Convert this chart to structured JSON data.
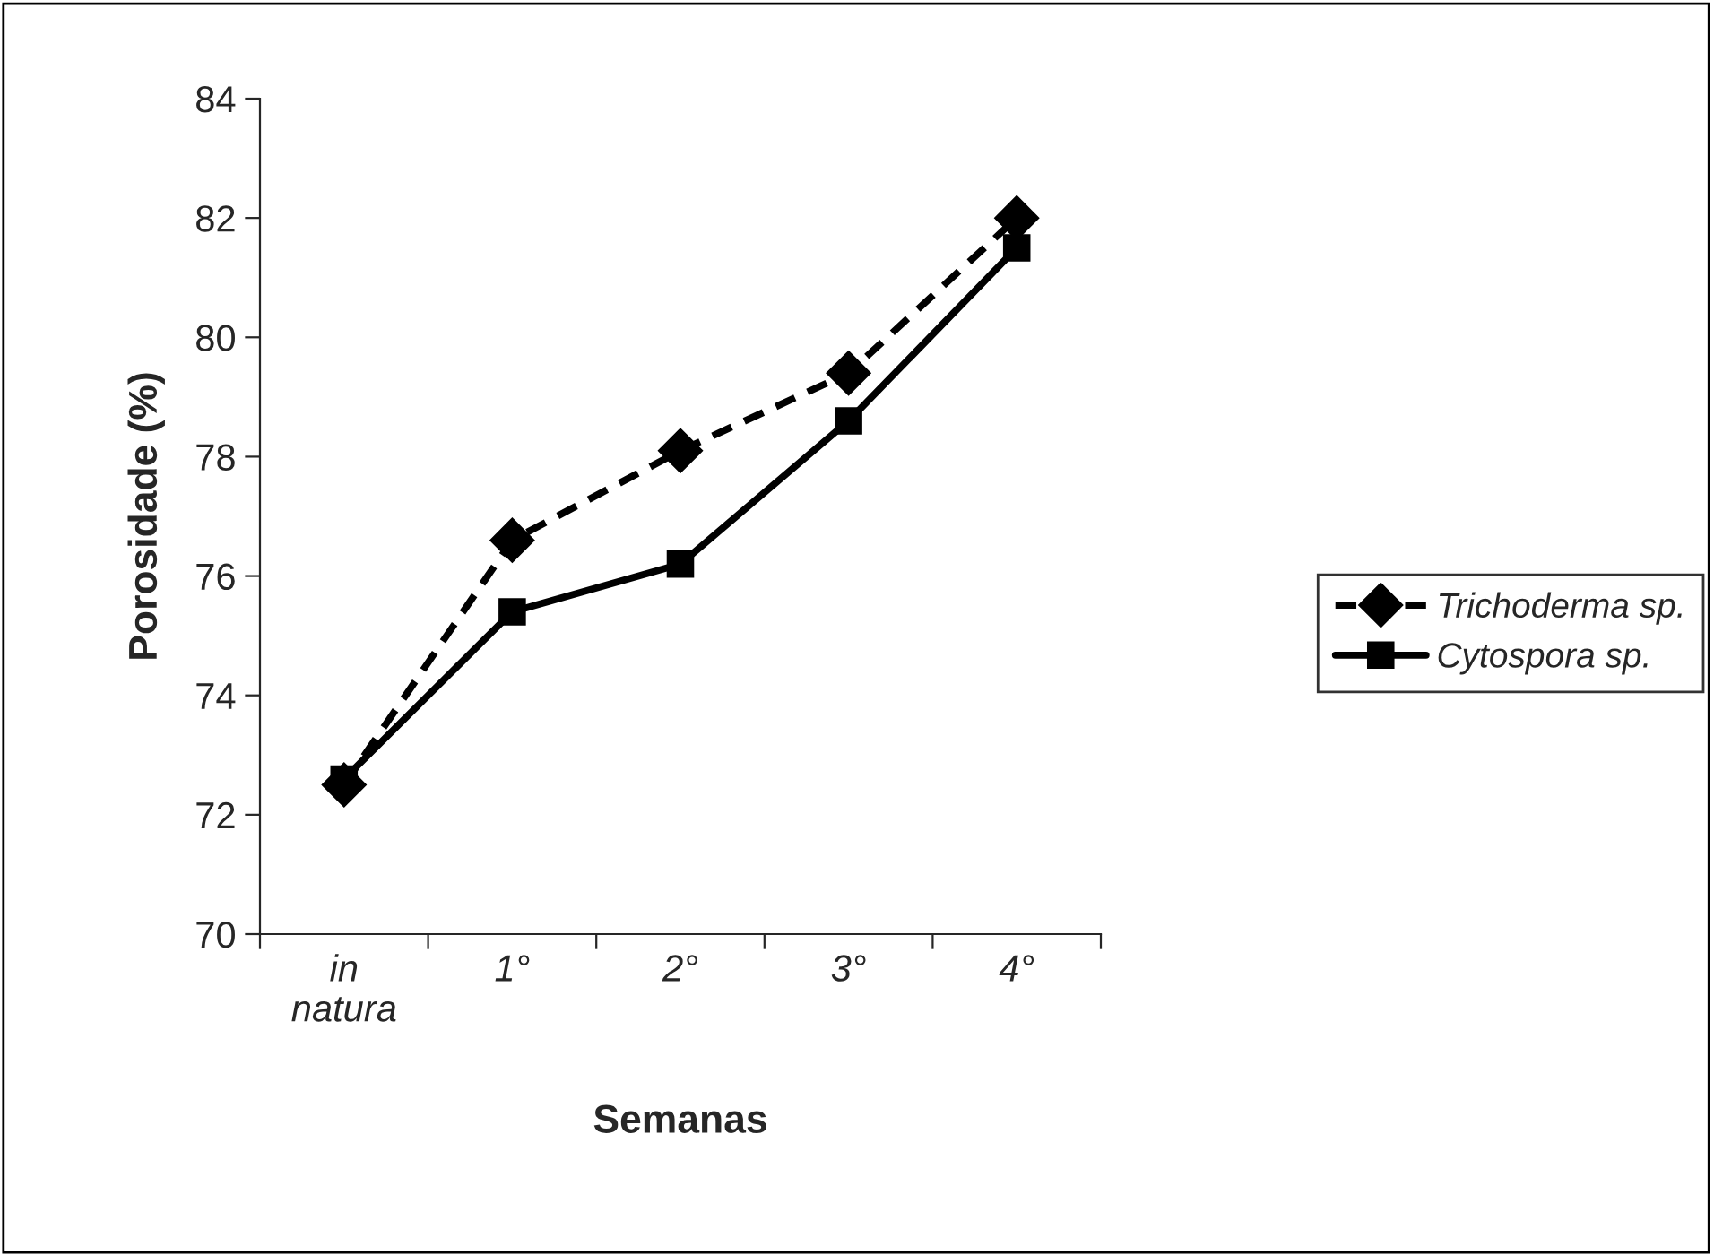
{
  "chart_data": {
    "type": "line",
    "xlabel": "Semanas",
    "ylabel": "Porosidade (%)",
    "categories": [
      "in\nnatura",
      "1°",
      "2°",
      "3°",
      "4°"
    ],
    "series": [
      {
        "name": "Trichoderma sp.",
        "color": "#000000",
        "values": [
          72.5,
          76.6,
          78.1,
          79.4,
          82.0
        ],
        "marker": "diamond",
        "line_style": "dashed"
      },
      {
        "name": "Cytospora sp.",
        "color": "#000000",
        "values": [
          72.6,
          75.4,
          76.2,
          78.6,
          81.5
        ],
        "marker": "square",
        "line_style": "solid"
      }
    ],
    "ylim": [
      70,
      84
    ],
    "yticks": [
      70,
      72,
      74,
      76,
      78,
      80,
      82,
      84
    ],
    "grid": false,
    "legend": "right"
  }
}
